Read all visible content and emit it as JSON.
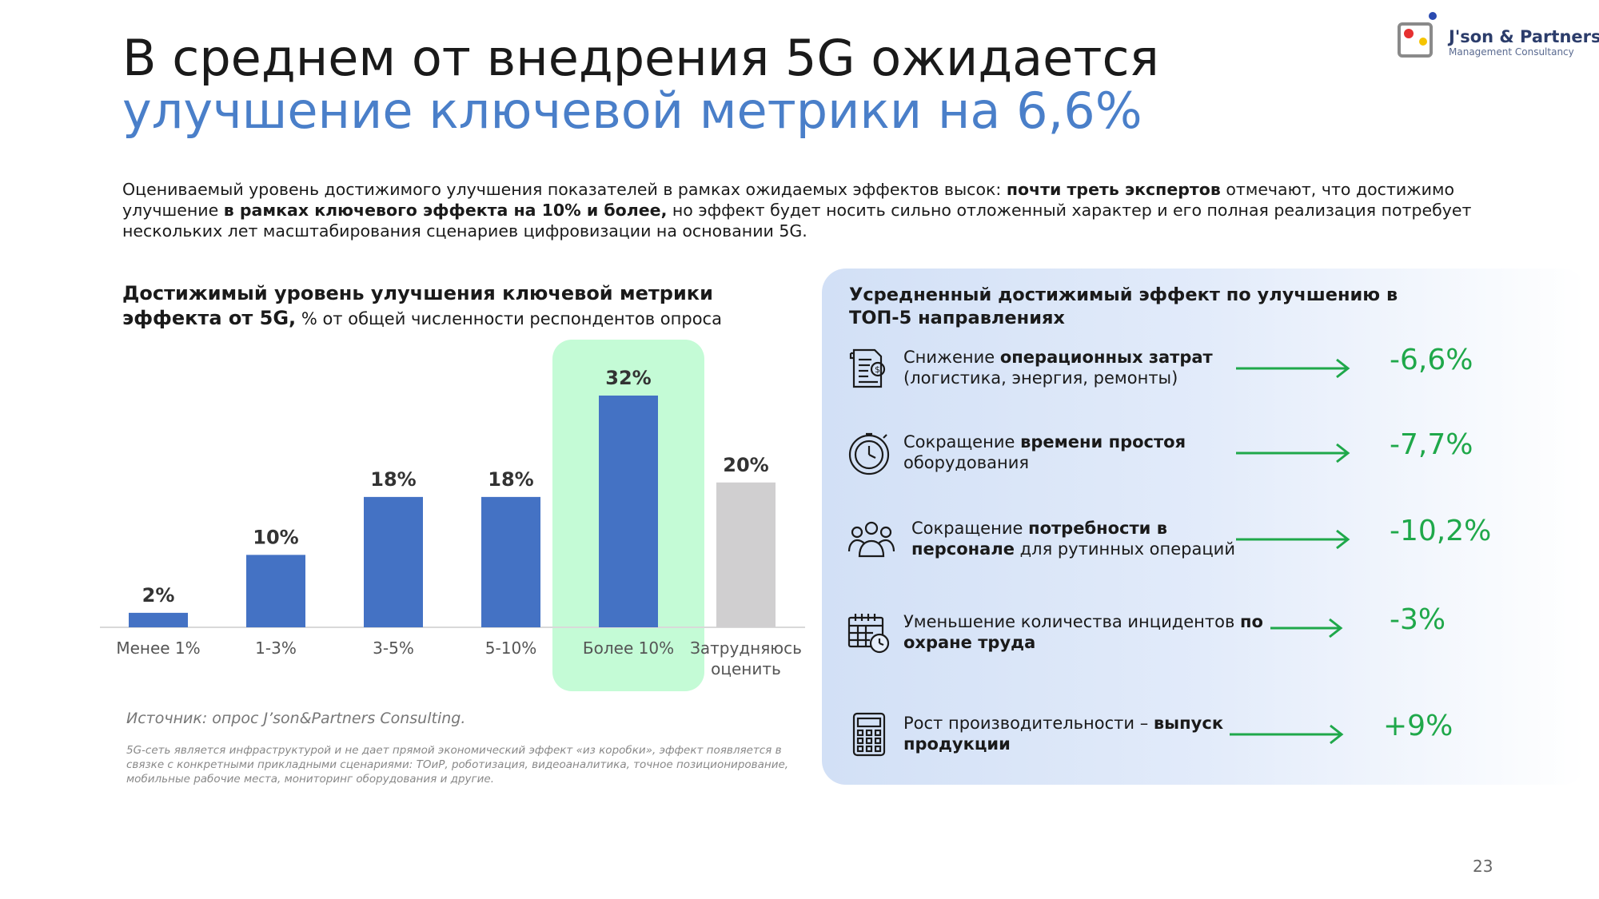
{
  "title": {
    "line1": "В среднем от внедрения 5G ожидается",
    "line2": "улучшение ключевой метрики на 6,6%"
  },
  "logo": {
    "name": "J'son & Partners",
    "subtitle": "Management Consultancy",
    "colors": [
      "#e63030",
      "#f5c400",
      "#2a4ab0"
    ]
  },
  "intro": {
    "p1": "Оцениваемый уровень достижимого улучшения показателей в рамках ожидаемых эффектов высок: ",
    "b1": "почти треть экспертов",
    "p2": " отмечают, что достижимо улучшение ",
    "b2": "в рамках ключевого эффекта на 10% и более,",
    "p3": " но эффект будет носить сильно отложенный характер и его полная реализация потребует нескольких лет масштабирования сценариев цифровизации на основании 5G."
  },
  "chart_title": {
    "bold": "Достижимый уровень улучшения ключевой метрики эффекта от 5G,",
    "normal": " % от общей численности респондентов опроса"
  },
  "chart_data": {
    "type": "bar",
    "title": "Достижимый уровень улучшения ключевой метрики эффекта от 5G, % от общей численности респондентов опроса",
    "categories": [
      "Менее 1%",
      "1-3%",
      "3-5%",
      "5-10%",
      "Более 10%",
      "Затрудняюсь оценить"
    ],
    "category_lines": [
      [
        "Менее 1%"
      ],
      [
        "1-3%"
      ],
      [
        "3-5%"
      ],
      [
        "5-10%"
      ],
      [
        "Более 10%"
      ],
      [
        "Затрудняюсь",
        "оценить"
      ]
    ],
    "values": [
      2,
      10,
      18,
      18,
      32,
      20
    ],
    "value_labels": [
      "2%",
      "10%",
      "18%",
      "18%",
      "32%",
      "20%"
    ],
    "colors": [
      "#4472c4",
      "#4472c4",
      "#4472c4",
      "#4472c4",
      "#4472c4",
      "#d0cfd0"
    ],
    "highlight_index": 4,
    "highlight_color": "#c4fbd6",
    "ylim": [
      0,
      32
    ],
    "grid": false,
    "legend": "none"
  },
  "source": "Источник: опрос J’son&Partners Consulting.",
  "footnote": "5G-сеть является инфраструктурой и не дает прямой экономический эффект «из коробки», эффект появляется в связке с конкретными прикладными сценариями: ТОиР, роботизация, видеоаналитика, точное позиционирование, мобильные рабочие места, мониторинг оборудования и другие.",
  "panel": {
    "title": "Усредненный достижимый эффект по улучшению в ТОП-5 направлениях",
    "accent_color": "#1fa84a",
    "effects": [
      {
        "icon": "invoice-icon",
        "pre": "Снижение ",
        "bold": "операционных затрат",
        "post": " (логистика, энергия, ремонты)",
        "value": "-6,6%"
      },
      {
        "icon": "stopwatch-icon",
        "pre": "Сокращение ",
        "bold": "времени простоя",
        "post": " оборудования",
        "value": "-7,7%"
      },
      {
        "icon": "people-icon",
        "pre": "Сокращение ",
        "bold": "потребности в персонале",
        "post": " для рутинных операций",
        "value": "-10,2%"
      },
      {
        "icon": "calendar-clock-icon",
        "pre": "Уменьшение количества инцидентов ",
        "bold": "по охране труда",
        "post": "",
        "value": "-3%"
      },
      {
        "icon": "calculator-icon",
        "pre": "Рост производительности – ",
        "bold": "выпуск продукции",
        "post": "",
        "value": "+9%"
      }
    ]
  },
  "page_number": "23"
}
